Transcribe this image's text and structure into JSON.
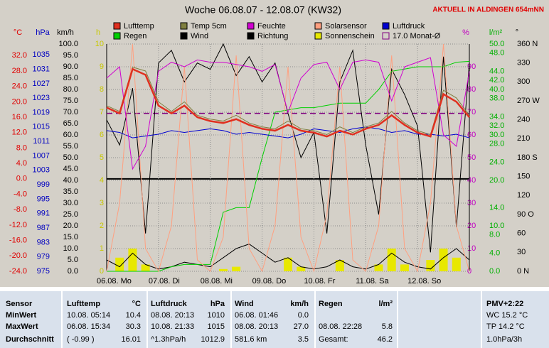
{
  "chart_data": {
    "type": "line",
    "title": "Woche 06.08.07 - 12.08.07 (KW32)",
    "subtitle": "AKTUELL IN ALDINGEN 654mNN",
    "grid": true,
    "xlim": [
      0,
      7
    ],
    "xticks": [
      {
        "value": 0,
        "label": "06.08. Mo"
      },
      {
        "value": 1,
        "label": "07.08. Di"
      },
      {
        "value": 2,
        "label": "08.08. Mi"
      },
      {
        "value": 3,
        "label": "09.08. Do"
      },
      {
        "value": 4,
        "label": "10.08. Fr"
      },
      {
        "value": 5,
        "label": "11.08. Sa"
      },
      {
        "value": 6,
        "label": "12.08. So"
      }
    ],
    "x": [
      0,
      0.25,
      0.5,
      0.75,
      1,
      1.25,
      1.5,
      1.75,
      2,
      2.25,
      2.5,
      2.75,
      3,
      3.25,
      3.5,
      3.75,
      4,
      4.25,
      4.5,
      4.75,
      5,
      5.25,
      5.5,
      5.75,
      6,
      6.25,
      6.5,
      6.75,
      7
    ],
    "axes": [
      {
        "label": "°C",
        "color": "#e00000",
        "lim": [
          -24,
          35
        ],
        "ticks": [
          {
            "value": 32,
            "label": "32.0"
          },
          {
            "value": 28,
            "label": "28.0"
          },
          {
            "value": 24,
            "label": "24.0"
          },
          {
            "value": 20,
            "label": "20.0"
          },
          {
            "value": 16,
            "label": "16.0"
          },
          {
            "value": 12,
            "label": "12.0"
          },
          {
            "value": 8,
            "label": "8.0"
          },
          {
            "value": 4,
            "label": "4.0"
          },
          {
            "value": 0,
            "label": "0.0"
          },
          {
            "value": -4,
            "label": "-4.0"
          },
          {
            "value": -8,
            "label": "-8.0"
          },
          {
            "value": -12,
            "label": "-12.0"
          },
          {
            "value": -16,
            "label": "-16.0"
          },
          {
            "value": -20,
            "label": "-20.0"
          },
          {
            "value": -24,
            "label": "-24.0"
          }
        ]
      },
      {
        "label": "hPa",
        "color": "#0000c0",
        "lim": [
          975,
          1038
        ],
        "ticks": [
          1035,
          1031,
          1027,
          1023,
          1019,
          1015,
          1011,
          1007,
          1003,
          999,
          995,
          991,
          987,
          983,
          979,
          975
        ]
      },
      {
        "label": "km/h",
        "color": "#000000",
        "lim": [
          0,
          100
        ],
        "ticks": [
          {
            "value": 100,
            "label": "100.0"
          },
          {
            "value": 95,
            "label": "95.0"
          },
          {
            "value": 90,
            "label": "90.0"
          },
          {
            "value": 85,
            "label": "85.0"
          },
          {
            "value": 80,
            "label": "80.0"
          },
          {
            "value": 75,
            "label": "75.0"
          },
          {
            "value": 70,
            "label": "70.0"
          },
          {
            "value": 65,
            "label": "65.0"
          },
          {
            "value": 60,
            "label": "60.0"
          },
          {
            "value": 55,
            "label": "55.0"
          },
          {
            "value": 50,
            "label": "50.0"
          },
          {
            "value": 45,
            "label": "45.0"
          },
          {
            "value": 40,
            "label": "40.0"
          },
          {
            "value": 35,
            "label": "35.0"
          },
          {
            "value": 30,
            "label": "30.0"
          },
          {
            "value": 25,
            "label": "25.0"
          },
          {
            "value": 20,
            "label": "20.0"
          },
          {
            "value": 15,
            "label": "15.0"
          },
          {
            "value": 10,
            "label": "10.0"
          },
          {
            "value": 5,
            "label": "5.0"
          },
          {
            "value": 0,
            "label": "0.0"
          }
        ]
      },
      {
        "label": "h",
        "color": "#c8c800",
        "lim": [
          0,
          10
        ],
        "ticks": [
          10,
          9,
          8,
          7,
          6,
          5,
          4,
          3,
          2,
          1,
          0
        ]
      },
      {
        "label": "%",
        "color": "#c000c0",
        "lim": [
          0,
          100
        ],
        "ticks": [
          90,
          80,
          70,
          60,
          50,
          40,
          30,
          20,
          10,
          0
        ]
      },
      {
        "label": "l/m²",
        "color": "#00b000",
        "lim": [
          0,
          50
        ],
        "ticks": [
          {
            "value": 50,
            "label": "50.0"
          },
          {
            "value": 48,
            "label": "48.0"
          },
          {
            "value": 44,
            "label": "44.0"
          },
          {
            "value": 42,
            "label": "42.0"
          },
          {
            "value": 40,
            "label": "40.0"
          },
          {
            "value": 38,
            "label": "38.0"
          },
          {
            "value": 34,
            "label": "34.0"
          },
          {
            "value": 32,
            "label": "32.0"
          },
          {
            "value": 30,
            "label": "30.0"
          },
          {
            "value": 28,
            "label": "28.0"
          },
          {
            "value": 24,
            "label": "24.0"
          },
          {
            "value": 20,
            "label": "20.0"
          },
          {
            "value": 14,
            "label": "14.0"
          },
          {
            "value": 10,
            "label": "10.0"
          },
          {
            "value": 8,
            "label": "8.0"
          },
          {
            "value": 4,
            "label": "4.0"
          },
          {
            "value": 0,
            "label": "0.0"
          }
        ]
      },
      {
        "label": "°",
        "color": "#000000",
        "lim": [
          0,
          360
        ],
        "ticks": [
          {
            "value": 360,
            "label": "360 N"
          },
          330,
          300,
          {
            "value": 270,
            "label": "270 W"
          },
          240,
          210,
          {
            "value": 180,
            "label": "180 S"
          },
          150,
          120,
          {
            "value": 90,
            "label": "90 O"
          },
          60,
          30,
          {
            "value": 0,
            "label": "0 N"
          }
        ]
      }
    ],
    "series": [
      {
        "name": "Lufttemp",
        "color": "#e03020",
        "axis": 0,
        "width": 2.5,
        "values": [
          18.5,
          17,
          28.5,
          27,
          19,
          17,
          19,
          16,
          15,
          14.5,
          15.5,
          14,
          13,
          12.5,
          14,
          12.5,
          12,
          11,
          12.5,
          11.5,
          13,
          14,
          16.5,
          14,
          12,
          11,
          22,
          20,
          16
        ]
      },
      {
        "name": "Temp 5cm",
        "color": "#808040",
        "axis": 0,
        "width": 1,
        "values": [
          19,
          17.5,
          29,
          28,
          20,
          17.5,
          20,
          16.5,
          15.5,
          15,
          16.5,
          14.5,
          13.5,
          13,
          15,
          13,
          12.5,
          11.5,
          13.5,
          12,
          13.5,
          14.5,
          17.5,
          14.5,
          12.5,
          11.5,
          23,
          21,
          16.5
        ]
      },
      {
        "name": "Feuchte",
        "color": "#d000d0",
        "axis": 4,
        "width": 1,
        "values": [
          85,
          90,
          45,
          55,
          88,
          92,
          90,
          93,
          92,
          92,
          91,
          90,
          88,
          91,
          70,
          85,
          91,
          92,
          80,
          92,
          93,
          92,
          75,
          90,
          92,
          94,
          60,
          55,
          88
        ]
      },
      {
        "name": "Solarsensor",
        "color": "#ffa080",
        "axis": 4,
        "width": 1,
        "values": [
          0,
          30,
          100,
          10,
          0,
          20,
          90,
          5,
          0,
          15,
          95,
          10,
          0,
          20,
          90,
          15,
          0,
          25,
          90,
          5,
          0,
          20,
          95,
          10,
          0,
          30,
          100,
          20,
          0
        ]
      },
      {
        "name": "Luftdruck",
        "color": "#0000d0",
        "axis": 1,
        "width": 1,
        "values": [
          1014,
          1013.5,
          1012,
          1012.5,
          1013,
          1014,
          1013.5,
          1014,
          1014.5,
          1014,
          1013,
          1013.5,
          1013,
          1012.5,
          1012,
          1013,
          1014.5,
          1014,
          1013.5,
          1014.5,
          1015,
          1014.5,
          1013.5,
          1014,
          1013,
          1013,
          1012.5,
          1013,
          1012
        ]
      },
      {
        "name": "Regen",
        "color": "#00d000",
        "axis": 5,
        "width": 1,
        "values": [
          0,
          0,
          0,
          0,
          0,
          1,
          1.5,
          1.5,
          1.5,
          13,
          14,
          14,
          25,
          35,
          35.5,
          36,
          36,
          36.5,
          37,
          37,
          37,
          40,
          44,
          44.5,
          45,
          45,
          45,
          46,
          46.2
        ]
      },
      {
        "name": "Wind",
        "color": "#000000",
        "axis": 2,
        "width": 1,
        "values": [
          5,
          2,
          8,
          3,
          1,
          2,
          4,
          3,
          2,
          6,
          10,
          12,
          8,
          4,
          6,
          2,
          1,
          2,
          5,
          2,
          1,
          3,
          8,
          4,
          2,
          1,
          6,
          10,
          5
        ]
      },
      {
        "name": "Richtung",
        "color": "#000000",
        "axis": 6,
        "width": 1,
        "values": [
          240,
          200,
          290,
          60,
          330,
          350,
          300,
          330,
          320,
          360,
          310,
          340,
          300,
          330,
          250,
          180,
          220,
          60,
          300,
          350,
          200,
          90,
          320,
          280,
          230,
          30,
          340,
          70,
          330
        ]
      },
      {
        "name": "Sonnenschein",
        "color": "#e8e800",
        "axis": 3,
        "style": "bar",
        "values": [
          0,
          0.6,
          1,
          0.3,
          0,
          0,
          0,
          0,
          0,
          0.1,
          0.2,
          0,
          0,
          0,
          0.6,
          0.2,
          0,
          0,
          0.5,
          0,
          0,
          0.3,
          1,
          0.3,
          0,
          0.5,
          1,
          0.6,
          0
        ]
      },
      {
        "name": "17.0 Monat-Ø",
        "color": "#800080",
        "axis": 0,
        "style": "dashed",
        "value": 17
      }
    ]
  },
  "table": {
    "rows": [
      [
        "Sensor",
        "Lufttemp",
        "°C",
        "Luftdruck",
        "hPa",
        "Wind",
        "km/h",
        "Regen",
        "l/m²",
        "PMV+2:22"
      ],
      [
        "MinWert",
        "10.08.  05:14",
        "10.4",
        "08.08.  20:13",
        "1010",
        "06.08.  01:46",
        "0.0",
        null,
        null,
        "WC 15.2 °C"
      ],
      [
        "MaxWert",
        "06.08.  15:34",
        "30.3",
        "10.08.  21:33",
        "1015",
        "08.08.  20:13",
        "27.0",
        "08.08.  22:28",
        "5.8",
        "TP 14.2 °C"
      ],
      [
        "Durchschnitt",
        "( -0.99 )",
        "16.01",
        "^1.3hPa/h",
        "1012.9",
        "581.6 km",
        "3.5",
        "Gesamt:",
        "46.2",
        "1.0hPa/3h"
      ]
    ]
  }
}
